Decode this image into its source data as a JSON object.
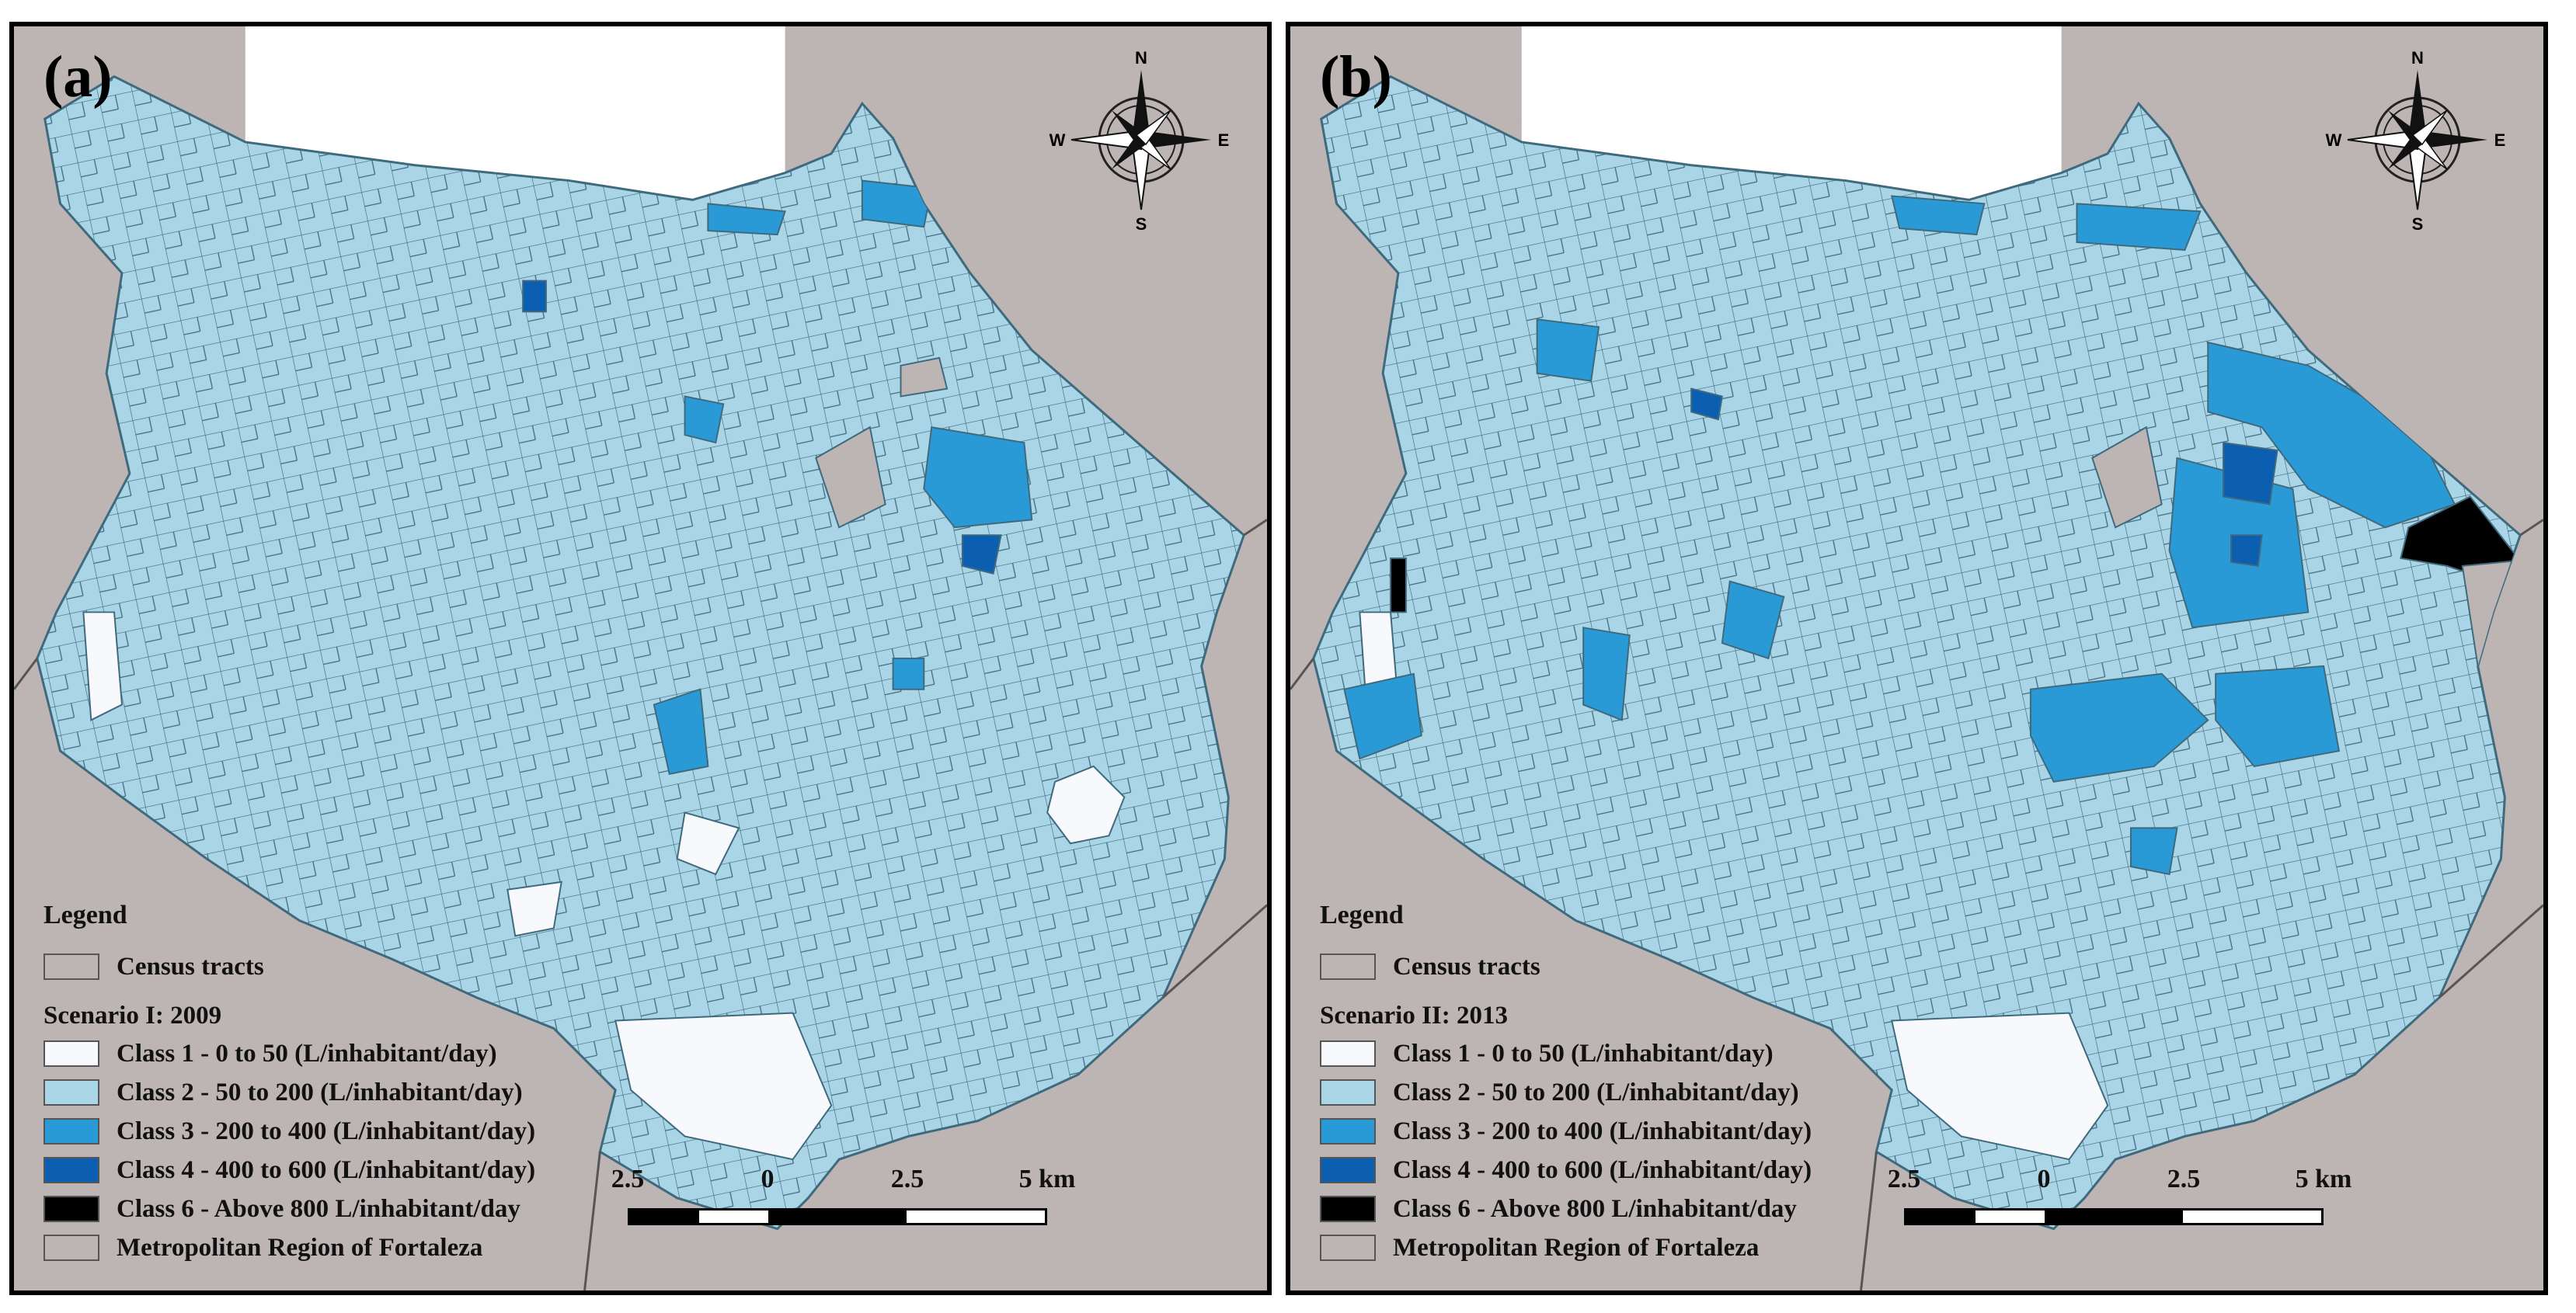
{
  "colors": {
    "region": "#bdb4b4",
    "class1": "#f7f9fc",
    "class2": "#a9d5e6",
    "class3": "#2a9ad6",
    "class4": "#0c5fb0",
    "class6": "#000000",
    "tract_line": "#3f6a7e"
  },
  "panels": [
    {
      "label": "(a)",
      "legend": {
        "title": "Legend",
        "census": "Census tracts",
        "scenario": "Scenario I: 2009",
        "classes": [
          "Class 1 - 0 to 50 (L/inhabitant/day)",
          "Class 2 - 50 to 200 (L/inhabitant/day)",
          "Class 3 - 200 to 400 (L/inhabitant/day)",
          "Class 4 - 400 to 600 (L/inhabitant/day)",
          "Class 6 - Above 800 L/inhabitant/day"
        ],
        "metro": "Metropolitan Region of Fortaleza"
      },
      "compass": {
        "n": "N",
        "s": "S",
        "e": "E",
        "w": "W"
      },
      "scale": {
        "labels": [
          "2.5",
          "0",
          "2.5",
          "5 km"
        ]
      }
    },
    {
      "label": "(b)",
      "legend": {
        "title": "Legend",
        "census": "Census tracts",
        "scenario": "Scenario II: 2013",
        "classes": [
          "Class 1 - 0 to 50 (L/inhabitant/day)",
          "Class 2 - 50 to 200 (L/inhabitant/day)",
          "Class 3 - 200 to 400 (L/inhabitant/day)",
          "Class 4 - 400 to 600 (L/inhabitant/day)",
          "Class 6 - Above 800 L/inhabitant/day"
        ],
        "metro": "Metropolitan Region of Fortaleza"
      },
      "compass": {
        "n": "N",
        "s": "S",
        "e": "E",
        "w": "W"
      },
      "scale": {
        "labels": [
          "2.5",
          "0",
          "2.5",
          "5 km"
        ]
      }
    }
  ]
}
